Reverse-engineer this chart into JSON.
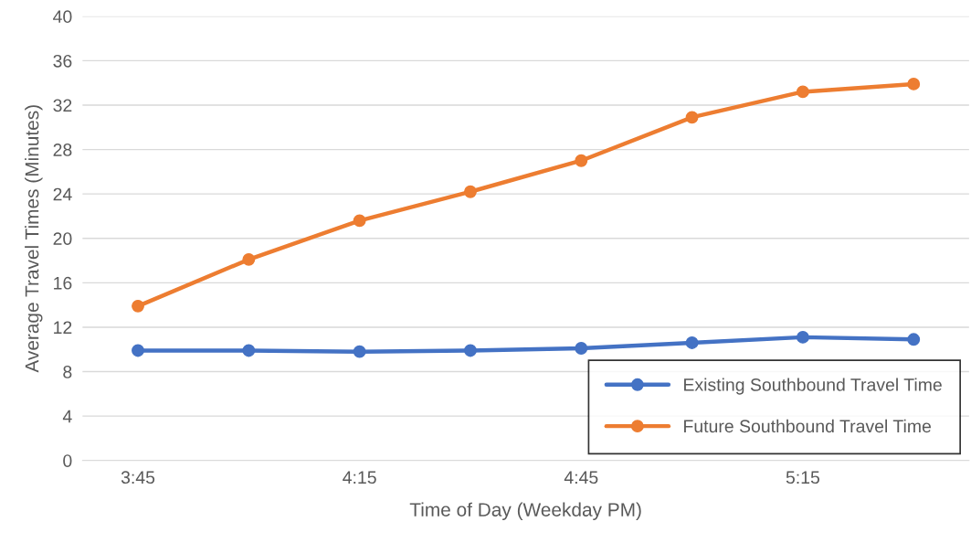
{
  "chart_data": {
    "type": "line",
    "xlabel": "Time of Day (Weekday PM)",
    "ylabel": "Average Travel Times (Minutes)",
    "categories": [
      "3:45",
      null,
      "4:15",
      null,
      "4:45",
      null,
      "5:15",
      null
    ],
    "series": [
      {
        "name": "Existing Southbound Travel Time",
        "color": "#4472c4",
        "values": [
          9.9,
          9.9,
          9.8,
          9.9,
          10.1,
          10.6,
          11.1,
          10.9
        ]
      },
      {
        "name": "Future Southbound Travel Time",
        "color": "#ed7d31",
        "values": [
          13.9,
          18.1,
          21.6,
          24.2,
          27.0,
          30.9,
          33.2,
          33.9
        ]
      }
    ],
    "ylim": [
      0,
      40
    ],
    "yticks": [
      0,
      4,
      8,
      12,
      16,
      20,
      24,
      28,
      32,
      36,
      40
    ],
    "grid": "y",
    "legend": "bottom right",
    "marker": "circle",
    "line_style": "solid"
  }
}
